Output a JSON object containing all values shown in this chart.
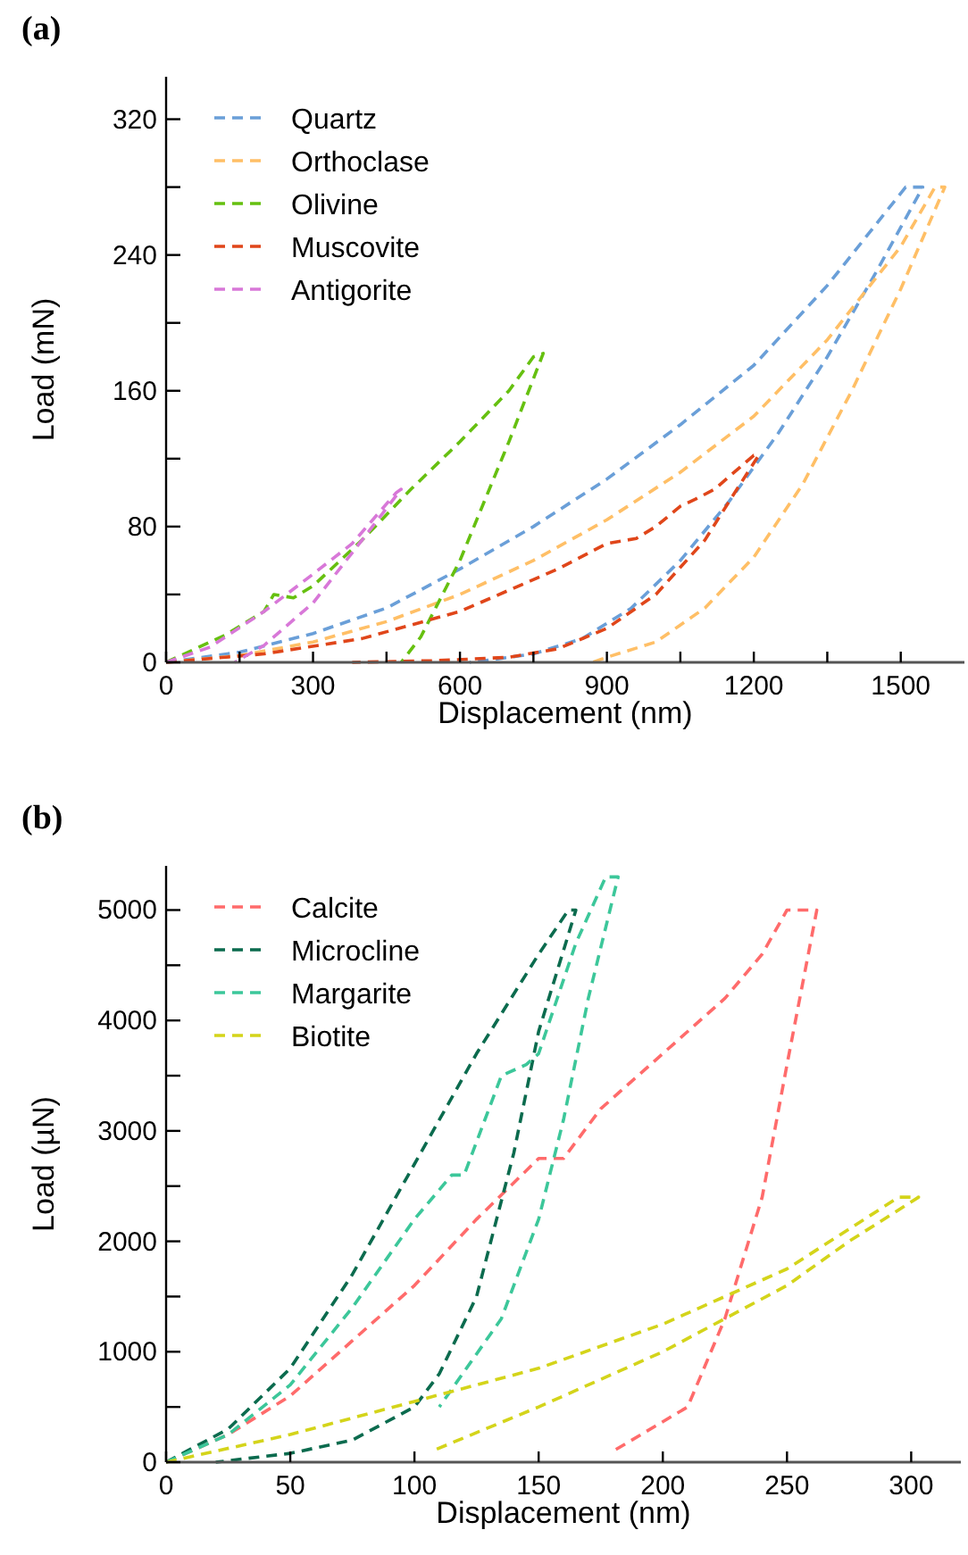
{
  "chart_data": [
    {
      "type": "line",
      "title": "(a)",
      "xlabel": "Displacement (nm)",
      "ylabel": "Load (mN)",
      "xlim": [
        0,
        1630
      ],
      "ylim": [
        0,
        345
      ],
      "xticks": [
        0,
        {
          "value": 150,
          "label": null
        },
        300,
        {
          "value": 450,
          "label": null
        },
        600,
        {
          "value": 750,
          "label": null
        },
        900,
        {
          "value": 1050,
          "label": null
        },
        1200,
        {
          "value": 1350,
          "label": null
        },
        1500
      ],
      "yticks": [
        0,
        {
          "value": 40,
          "label": null
        },
        80,
        {
          "value": 120,
          "label": null
        },
        160,
        {
          "value": 200,
          "label": null
        },
        240,
        {
          "value": 280,
          "label": null
        },
        320
      ],
      "legend": "top left",
      "grid": false,
      "line_style": "dashed",
      "series": [
        {
          "name": "Quartz",
          "color": "#6a9fd8",
          "x": [
            0,
            150,
            300,
            450,
            600,
            750,
            900,
            1050,
            1200,
            1350,
            1510,
            1545,
            1450,
            1350,
            1250,
            1150,
            1050,
            950,
            850,
            750,
            650,
            620
          ],
          "values": [
            0,
            6,
            17,
            32,
            55,
            80,
            108,
            140,
            175,
            222,
            280,
            280,
            230,
            180,
            135,
            95,
            60,
            32,
            14,
            5,
            1,
            0
          ]
        },
        {
          "name": "Orthoclase",
          "color": "#ffbf66",
          "x": [
            0,
            150,
            300,
            450,
            600,
            750,
            900,
            1050,
            1200,
            1350,
            1500,
            1570,
            1590,
            1500,
            1400,
            1300,
            1200,
            1100,
            1000,
            900,
            870
          ],
          "values": [
            0,
            4,
            12,
            24,
            40,
            60,
            84,
            112,
            145,
            190,
            245,
            280,
            280,
            220,
            160,
            105,
            62,
            32,
            12,
            3,
            0
          ]
        },
        {
          "name": "Olivine",
          "color": "#66c010",
          "x": [
            0,
            120,
            200,
            220,
            260,
            300,
            400,
            500,
            600,
            700,
            750,
            770,
            700,
            600,
            520,
            480
          ],
          "values": [
            0,
            16,
            30,
            40,
            38,
            45,
            72,
            102,
            130,
            160,
            180,
            182,
            130,
            60,
            15,
            0
          ]
        },
        {
          "name": "Muscovite",
          "color": "#e0461a",
          "x": [
            0,
            200,
            400,
            600,
            800,
            900,
            960,
            1000,
            1050,
            1080,
            1120,
            1200,
            1210,
            1150,
            1100,
            1000,
            900,
            800,
            700,
            550,
            380
          ],
          "values": [
            0,
            5,
            14,
            30,
            55,
            70,
            73,
            80,
            92,
            96,
            102,
            122,
            122,
            95,
            72,
            40,
            20,
            8,
            3,
            1,
            0
          ]
        },
        {
          "name": "Antigorite",
          "color": "#d878d8",
          "x": [
            0,
            90,
            200,
            300,
            380,
            470,
            480,
            400,
            300,
            200,
            140
          ],
          "values": [
            0,
            9,
            30,
            52,
            70,
            100,
            102,
            72,
            35,
            10,
            0
          ]
        }
      ]
    },
    {
      "type": "line",
      "title": "(b)",
      "xlabel": "Displacement (nm)",
      "ylabel": "Load (µN)",
      "xlim": [
        0,
        320
      ],
      "ylim": [
        0,
        5400
      ],
      "xticks": [
        0,
        50,
        100,
        150,
        200,
        250,
        300
      ],
      "yticks": [
        0,
        {
          "value": 500,
          "label": null
        },
        1000,
        {
          "value": 1500,
          "label": null
        },
        2000,
        {
          "value": 2500,
          "label": null
        },
        3000,
        {
          "value": 3500,
          "label": null
        },
        4000,
        {
          "value": 4500,
          "label": null
        },
        5000
      ],
      "legend": "top left",
      "grid": false,
      "line_style": "dashed",
      "series": [
        {
          "name": "Calcite",
          "color": "#ff6b6b",
          "x": [
            0,
            25,
            50,
            75,
            100,
            125,
            150,
            160,
            175,
            200,
            225,
            240,
            250,
            262,
            250,
            240,
            225,
            210,
            180
          ],
          "values": [
            0,
            250,
            600,
            1100,
            1600,
            2200,
            2750,
            2750,
            3200,
            3700,
            4200,
            4600,
            5000,
            5000,
            3600,
            2400,
            1300,
            500,
            100
          ]
        },
        {
          "name": "Microcline",
          "color": "#0b6b4e",
          "x": [
            0,
            25,
            50,
            75,
            100,
            125,
            150,
            162,
            165,
            150,
            140,
            125,
            110,
            100,
            75,
            50,
            20
          ],
          "values": [
            0,
            300,
            850,
            1700,
            2700,
            3700,
            4600,
            5000,
            5000,
            3900,
            2800,
            1500,
            800,
            500,
            200,
            80,
            0
          ]
        },
        {
          "name": "Margarite",
          "color": "#3cc79a",
          "x": [
            0,
            25,
            50,
            75,
            100,
            115,
            120,
            135,
            145,
            150,
            165,
            177,
            182,
            170,
            160,
            150,
            135,
            110
          ],
          "values": [
            0,
            250,
            700,
            1400,
            2200,
            2600,
            2600,
            3500,
            3600,
            3700,
            4700,
            5300,
            5300,
            4200,
            3100,
            2200,
            1300,
            500
          ]
        },
        {
          "name": "Biotite",
          "color": "#d4d41a",
          "x": [
            0,
            50,
            100,
            150,
            200,
            250,
            295,
            303,
            275,
            250,
            200,
            150,
            107
          ],
          "values": [
            0,
            250,
            550,
            850,
            1250,
            1750,
            2400,
            2400,
            2000,
            1600,
            1000,
            500,
            100
          ]
        }
      ]
    }
  ]
}
